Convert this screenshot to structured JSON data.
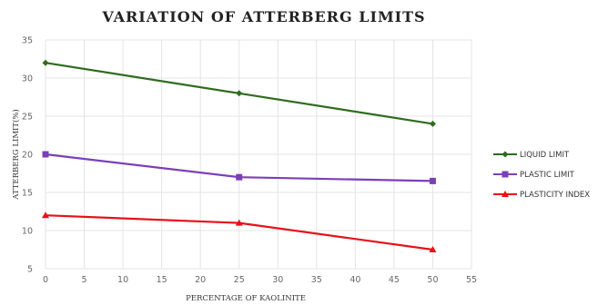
{
  "chart_data": {
    "type": "line",
    "title": "VARIATION OF ATTERBERG LIMITS",
    "xlabel": "PERCENTAGE OF KAOLINITE",
    "ylabel": "ATTERBERG LIMIT(%)",
    "x": [
      0,
      25,
      50
    ],
    "xlim": [
      0,
      55
    ],
    "ylim": [
      5,
      35
    ],
    "xticks": [
      "0",
      "5",
      "10",
      "15",
      "20",
      "25",
      "30",
      "35",
      "40",
      "45",
      "50",
      "55"
    ],
    "yticks": [
      "5",
      "10",
      "15",
      "20",
      "25",
      "30",
      "35"
    ],
    "grid": true,
    "legend_position": "right",
    "series": [
      {
        "name": "LIQUID LIMIT",
        "values": [
          32,
          28,
          24
        ],
        "color": "#2e6b1f",
        "marker": "diamond"
      },
      {
        "name": "PLASTIC LIMIT",
        "values": [
          20,
          17,
          16.5
        ],
        "color": "#7b3fb8",
        "marker": "square"
      },
      {
        "name": "PLASTICITY INDEX",
        "values": [
          12,
          11,
          7.5
        ],
        "color": "#e8101a",
        "marker": "triangle"
      }
    ]
  }
}
